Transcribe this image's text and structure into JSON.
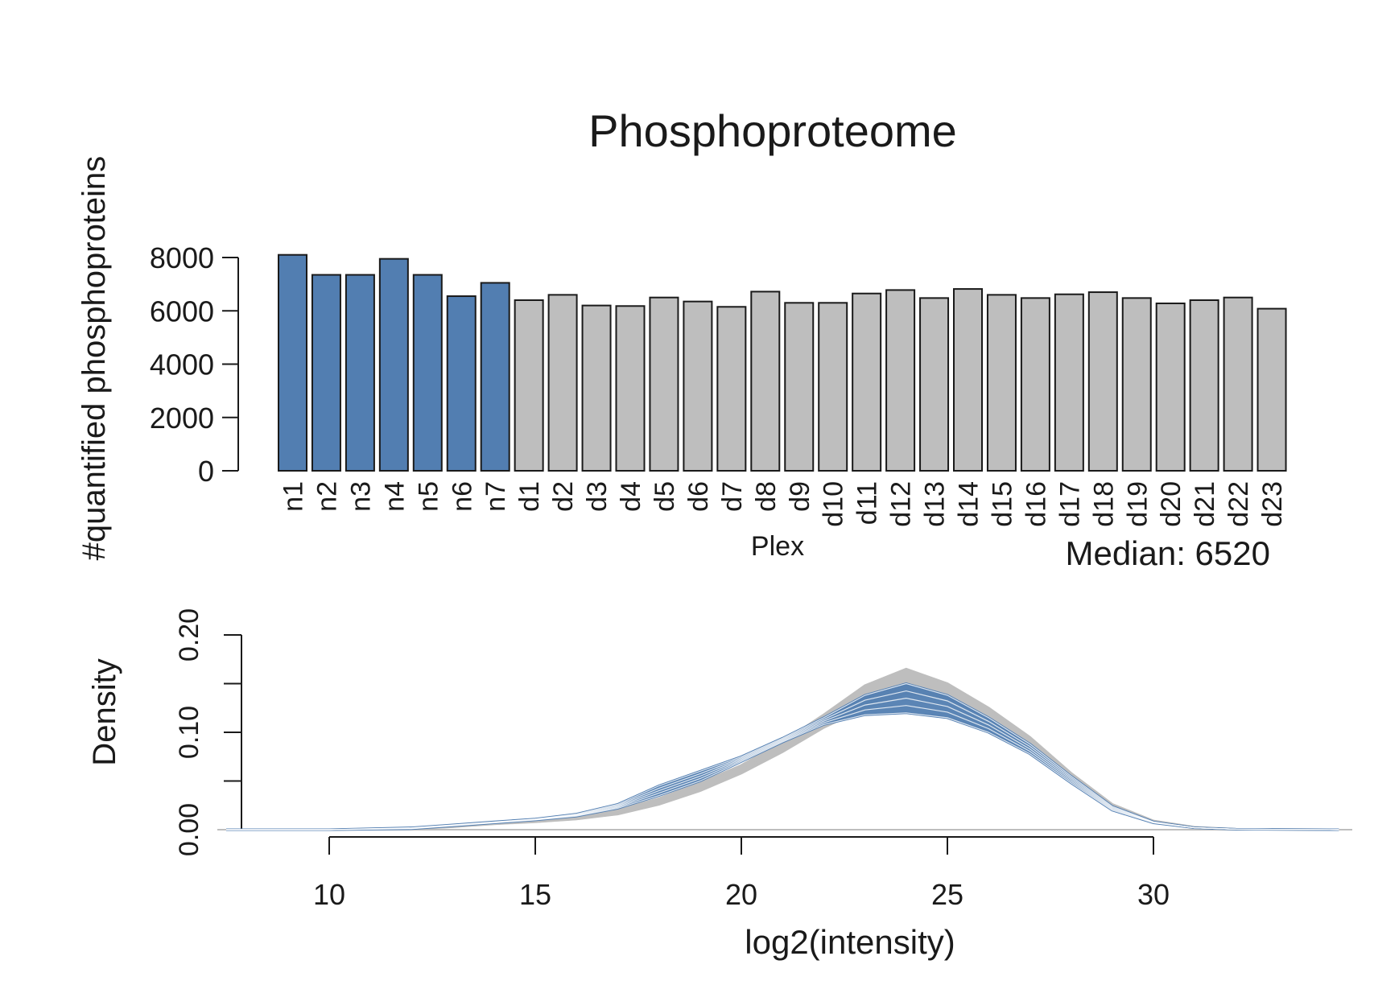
{
  "colors": {
    "normal": "#527EB1",
    "disease": "#BEBEBE",
    "outline": "#1a1a1a"
  },
  "chart_data": [
    {
      "type": "bar",
      "title": "Phosphoproteome",
      "xlabel": "Plex",
      "ylabel": "#quantified phosphoproteins",
      "annotation": "Median: 6520",
      "ylim": [
        0,
        8000
      ],
      "yticks": [
        "0",
        "2000",
        "4000",
        "6000",
        "8000"
      ],
      "categories": [
        "n1",
        "n2",
        "n3",
        "n4",
        "n5",
        "n6",
        "n7",
        "d1",
        "d2",
        "d3",
        "d4",
        "d5",
        "d6",
        "d7",
        "d8",
        "d9",
        "d10",
        "d11",
        "d12",
        "d13",
        "d14",
        "d15",
        "d16",
        "d17",
        "d18",
        "d19",
        "d20",
        "d21",
        "d22",
        "d23"
      ],
      "values": [
        8100,
        7350,
        7350,
        7950,
        7350,
        6550,
        7050,
        6400,
        6600,
        6200,
        6180,
        6500,
        6350,
        6150,
        6720,
        6300,
        6300,
        6650,
        6780,
        6480,
        6820,
        6600,
        6480,
        6620,
        6700,
        6480,
        6280,
        6400,
        6500,
        6080
      ],
      "groups": [
        "n",
        "n",
        "n",
        "n",
        "n",
        "n",
        "n",
        "d",
        "d",
        "d",
        "d",
        "d",
        "d",
        "d",
        "d",
        "d",
        "d",
        "d",
        "d",
        "d",
        "d",
        "d",
        "d",
        "d",
        "d",
        "d",
        "d",
        "d",
        "d",
        "d"
      ]
    },
    {
      "type": "line",
      "xlabel": "log2(intensity)",
      "ylabel": "Density",
      "xlim": [
        10,
        30
      ],
      "ylim": [
        0,
        0.2
      ],
      "xticks": [
        "10",
        "15",
        "20",
        "25",
        "30"
      ],
      "yticks": [
        "0.00",
        "0.10",
        "0.20"
      ],
      "series_envelope": {
        "x": [
          7.5,
          10,
          12,
          13,
          14,
          15,
          16,
          17,
          18,
          19,
          20,
          21,
          22,
          23,
          24,
          25,
          26,
          27,
          28,
          29,
          30,
          31,
          32,
          34.5
        ],
        "disease_low": [
          0,
          0,
          0.001,
          0.003,
          0.006,
          0.008,
          0.011,
          0.016,
          0.026,
          0.04,
          0.058,
          0.08,
          0.105,
          0.125,
          0.14,
          0.135,
          0.115,
          0.085,
          0.05,
          0.022,
          0.008,
          0.002,
          0.0005,
          0
        ],
        "disease_high": [
          0,
          0,
          0.001,
          0.004,
          0.007,
          0.01,
          0.014,
          0.02,
          0.032,
          0.048,
          0.066,
          0.09,
          0.118,
          0.148,
          0.165,
          0.15,
          0.125,
          0.095,
          0.058,
          0.026,
          0.009,
          0.0025,
          0.0005,
          0
        ],
        "normal_low": [
          0,
          0,
          0.001,
          0.004,
          0.007,
          0.01,
          0.014,
          0.022,
          0.035,
          0.05,
          0.07,
          0.09,
          0.108,
          0.118,
          0.12,
          0.115,
          0.1,
          0.078,
          0.048,
          0.02,
          0.007,
          0.002,
          0.0005,
          0
        ],
        "normal_high": [
          0,
          0,
          0.002,
          0.005,
          0.008,
          0.011,
          0.016,
          0.026,
          0.045,
          0.06,
          0.075,
          0.094,
          0.115,
          0.138,
          0.15,
          0.138,
          0.115,
          0.088,
          0.055,
          0.024,
          0.008,
          0.002,
          0.0005,
          0
        ]
      }
    }
  ]
}
